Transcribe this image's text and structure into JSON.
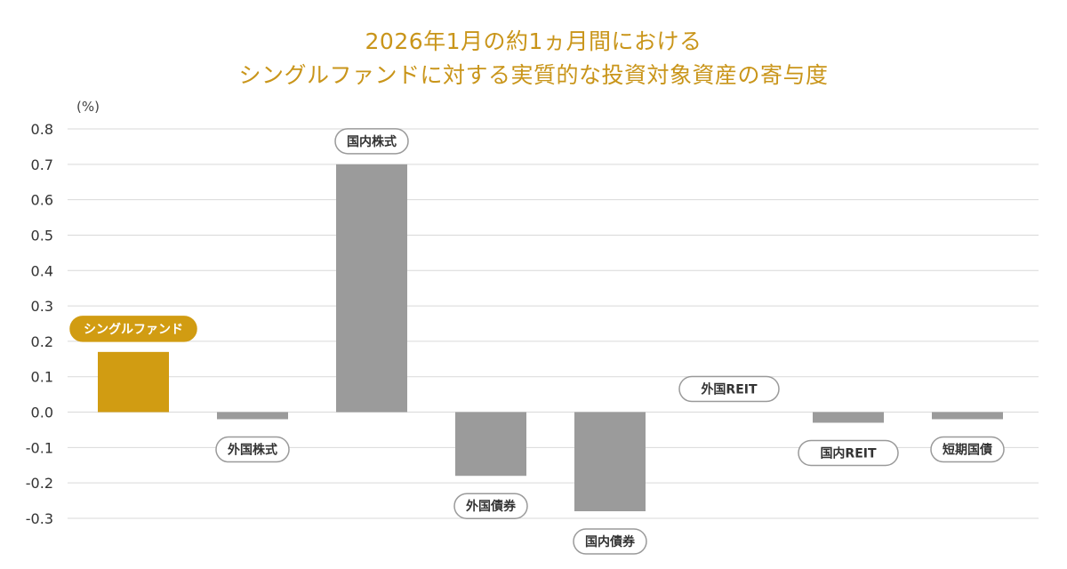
{
  "title_lines": [
    "2026年1月の約1ヵ月間における",
    "シングルファンドに対する実質的な投資対象資産の寄与度"
  ],
  "unit_label": "(%)",
  "colors": {
    "title": "#c9951a",
    "highlight_bar": "#d19c12",
    "bar": "#9b9b9b",
    "grid": "#d9d9d9",
    "tick_text": "#333333",
    "label_border": "#9a9a9a",
    "label_text": "#333333"
  },
  "chart_data": {
    "type": "bar",
    "categories": [
      "シングルファンド",
      "外国株式",
      "国内株式",
      "外国債券",
      "国内債券",
      "外国REIT",
      "国内REIT",
      "短期国債"
    ],
    "values": [
      0.17,
      -0.02,
      0.7,
      -0.18,
      -0.28,
      0.0,
      -0.03,
      -0.02
    ],
    "highlight_index": 0,
    "ylim": [
      -0.3,
      0.8
    ],
    "yticks": [
      0.8,
      0.7,
      0.6,
      0.5,
      0.4,
      0.3,
      0.2,
      0.1,
      0.0,
      -0.1,
      -0.2,
      -0.3
    ],
    "ytick_labels": [
      "0.8",
      "0.7",
      "0.6",
      "0.5",
      "0.4",
      "0.3",
      "0.2",
      "0.1",
      "0.0",
      "-0.1",
      "-0.2",
      "-0.3"
    ],
    "grid": true,
    "ylabel": "(%)"
  }
}
